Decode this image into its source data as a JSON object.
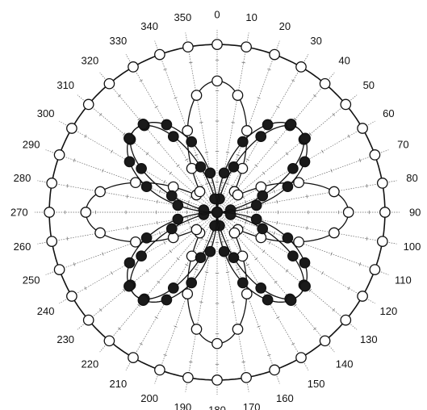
{
  "chart_data": {
    "type": "polar-scatter",
    "angle_unit": "degrees",
    "angle_zero": "top",
    "angle_direction": "clockwise",
    "angle_ticks": [
      0,
      10,
      20,
      30,
      40,
      50,
      60,
      70,
      80,
      90,
      100,
      110,
      120,
      130,
      140,
      150,
      160,
      170,
      180,
      190,
      200,
      210,
      220,
      230,
      240,
      250,
      260,
      270,
      280,
      290,
      300,
      310,
      320,
      330,
      340,
      350
    ],
    "radius_range": [
      0,
      1
    ],
    "spoke_minor_ticks": 5,
    "grid": true,
    "legend": "none",
    "colors": {
      "axis": "#111111",
      "grid": "#666666",
      "open_marker_fill": "#ffffff",
      "filled_marker": "#1a1a1a"
    },
    "series": [
      {
        "marker": "open-circle",
        "shape": "circle",
        "values": {
          "r": 0.92
        }
      },
      {
        "marker": "open-circle",
        "shape": "cos2-lobes",
        "values": {
          "r_max": 0.72,
          "r_min": 0.13
        }
      },
      {
        "marker": "filled-circle",
        "shape": "sin2-lobes",
        "values": {
          "r_max": 0.64,
          "r_min": 0.0
        }
      },
      {
        "marker": "filled-circle",
        "shape": "sin-2theta-lobes",
        "values": {
          "r_max": 0.64,
          "r_min": 0.0
        }
      }
    ]
  }
}
